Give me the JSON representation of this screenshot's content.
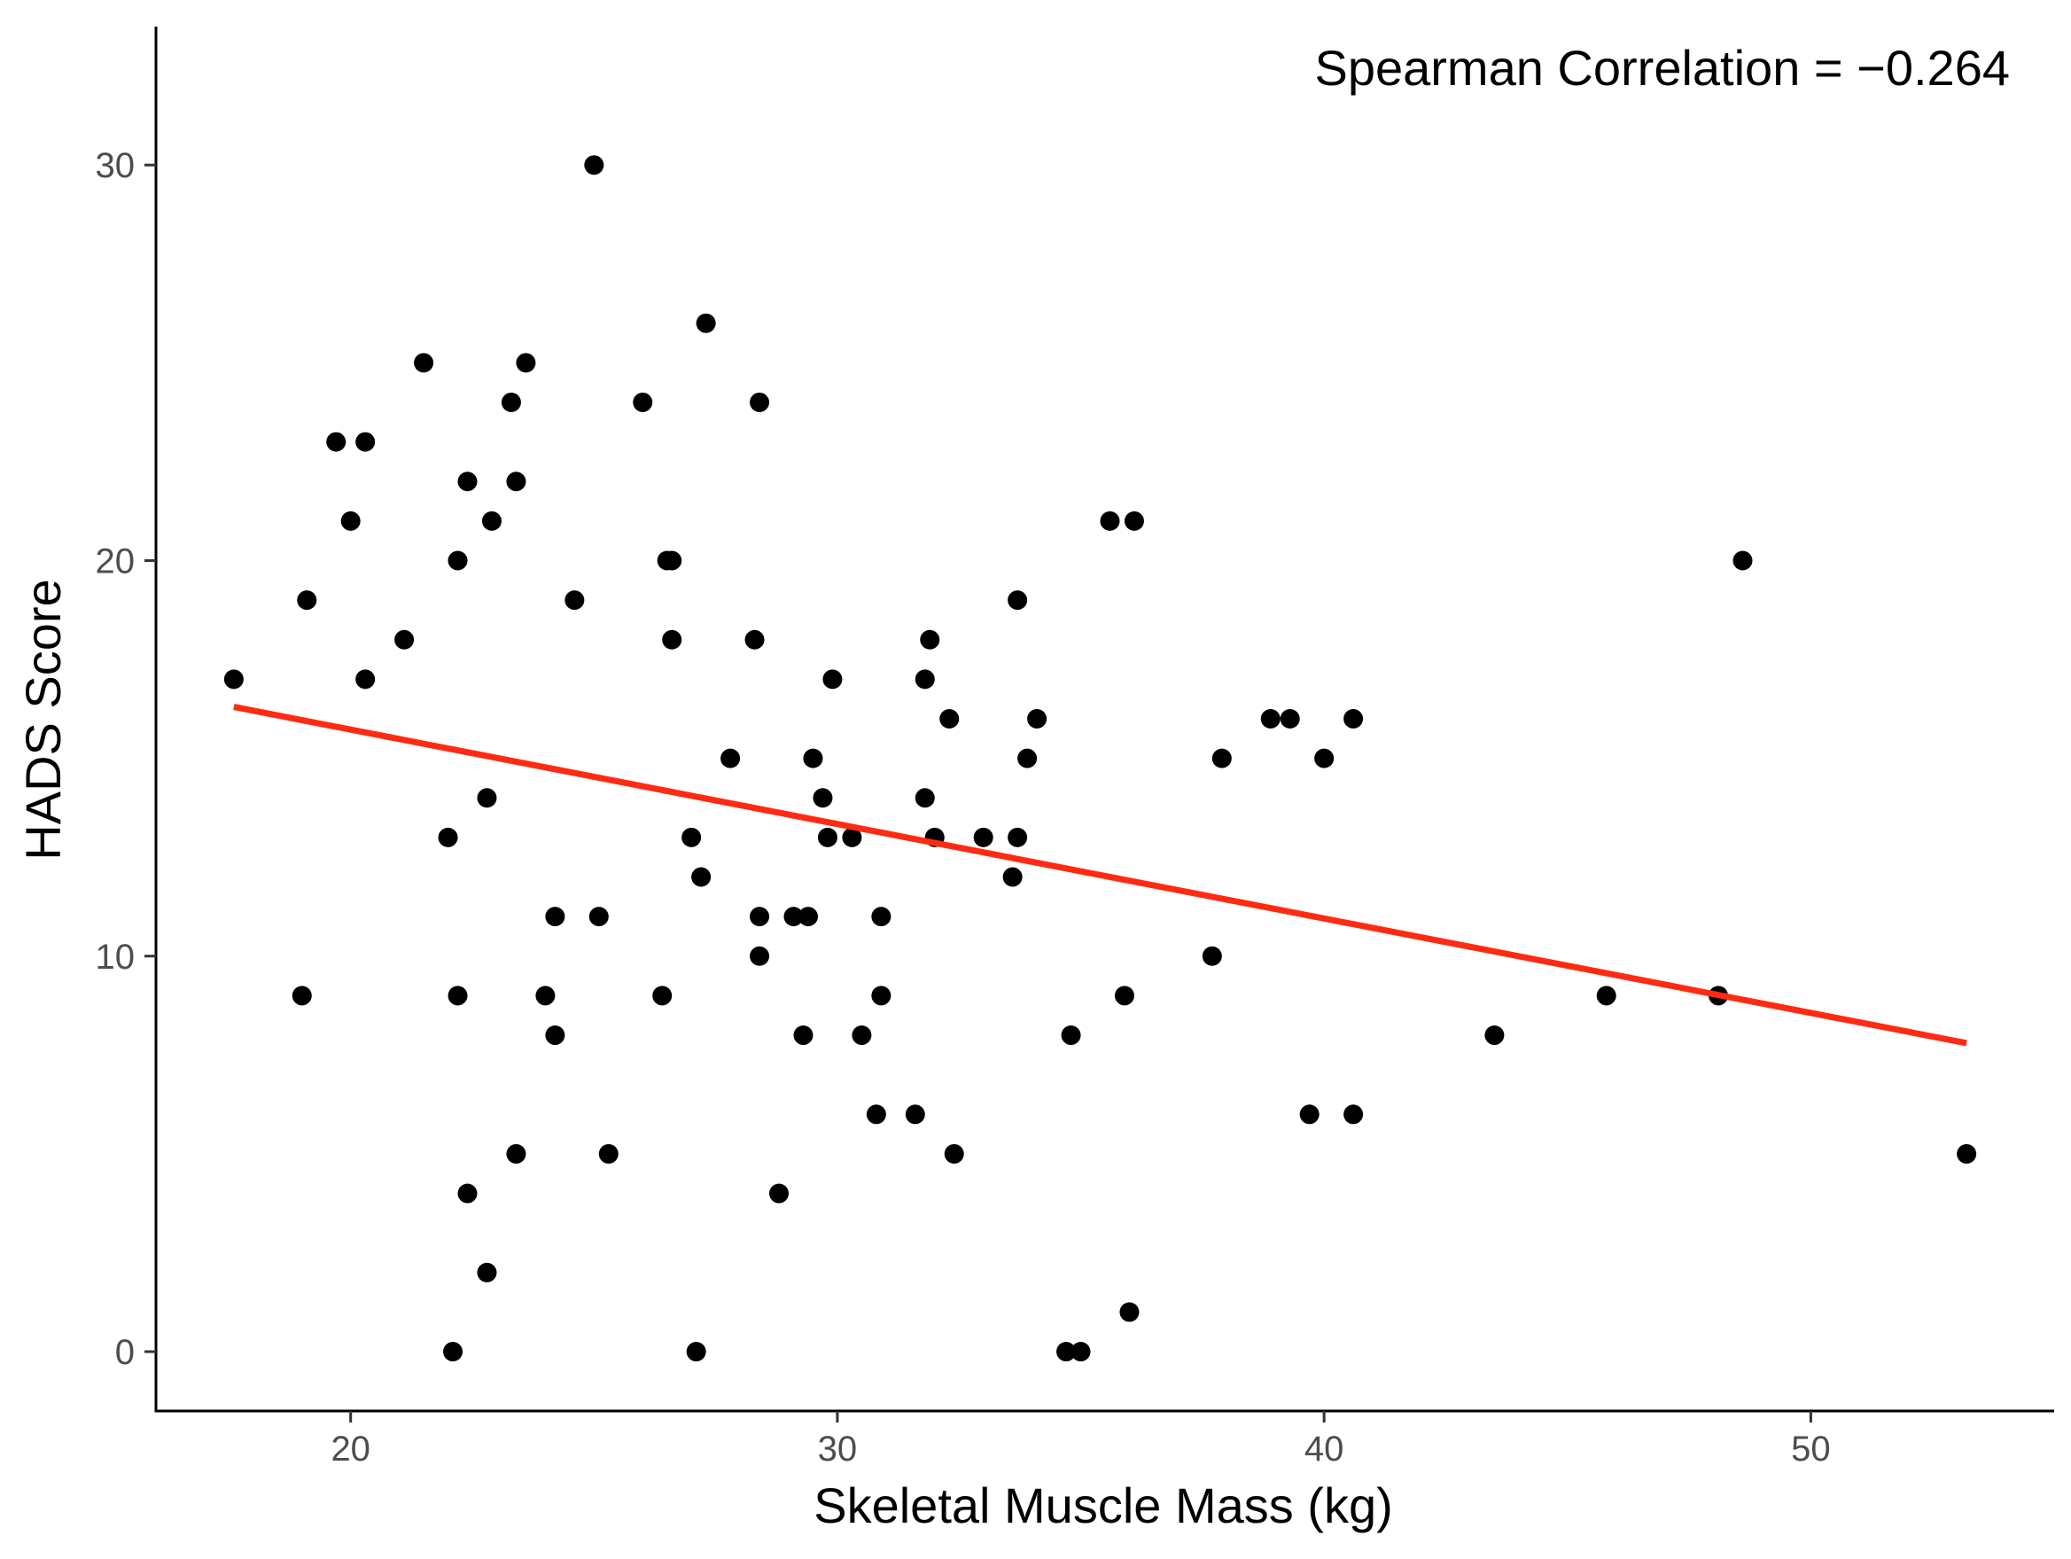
{
  "chart_data": {
    "type": "scatter",
    "title": "",
    "xlabel": "Skeletal Muscle Mass (kg)",
    "ylabel": "HADS Score",
    "xlim": [
      16,
      55
    ],
    "ylim": [
      -1.5,
      33.5
    ],
    "x_ticks": [
      20,
      30,
      40,
      50
    ],
    "y_ticks": [
      0,
      10,
      20,
      30
    ],
    "x_tick_labels": [
      "20",
      "30",
      "40",
      "50"
    ],
    "y_tick_labels": [
      "0",
      "10",
      "20",
      "30"
    ],
    "grid": false,
    "annotation": "Spearman Correlation = −0.264",
    "colors": {
      "points": "#000000",
      "fit_line": "#ff2a12",
      "axis": "#000000",
      "tick_text": "#4d4d4d"
    },
    "series": [
      {
        "name": "observations",
        "points": [
          [
            17.6,
            17
          ],
          [
            19.0,
            9
          ],
          [
            19.1,
            19
          ],
          [
            19.7,
            23
          ],
          [
            20.0,
            21
          ],
          [
            20.3,
            23
          ],
          [
            20.3,
            17
          ],
          [
            21.1,
            18
          ],
          [
            21.5,
            25
          ],
          [
            22.0,
            13
          ],
          [
            22.1,
            0
          ],
          [
            22.2,
            20
          ],
          [
            22.2,
            9
          ],
          [
            22.4,
            22
          ],
          [
            22.4,
            4
          ],
          [
            22.8,
            14
          ],
          [
            22.8,
            2
          ],
          [
            22.9,
            21
          ],
          [
            23.3,
            24
          ],
          [
            23.4,
            22
          ],
          [
            23.4,
            5
          ],
          [
            23.6,
            25
          ],
          [
            24.0,
            9
          ],
          [
            24.2,
            11
          ],
          [
            24.2,
            8
          ],
          [
            24.6,
            19
          ],
          [
            25.0,
            30
          ],
          [
            25.1,
            11
          ],
          [
            25.3,
            5
          ],
          [
            26.0,
            24
          ],
          [
            26.4,
            9
          ],
          [
            26.5,
            20
          ],
          [
            26.6,
            20
          ],
          [
            26.6,
            18
          ],
          [
            27.0,
            13
          ],
          [
            27.1,
            0
          ],
          [
            27.2,
            12
          ],
          [
            27.3,
            26
          ],
          [
            27.8,
            15
          ],
          [
            28.3,
            18
          ],
          [
            28.4,
            24
          ],
          [
            28.4,
            11
          ],
          [
            28.4,
            10
          ],
          [
            28.8,
            4
          ],
          [
            29.1,
            11
          ],
          [
            29.3,
            8
          ],
          [
            29.4,
            11
          ],
          [
            29.5,
            15
          ],
          [
            29.7,
            14
          ],
          [
            29.8,
            13
          ],
          [
            29.9,
            17
          ],
          [
            30.3,
            13
          ],
          [
            30.5,
            8
          ],
          [
            30.8,
            6
          ],
          [
            30.9,
            11
          ],
          [
            30.9,
            9
          ],
          [
            31.6,
            6
          ],
          [
            31.8,
            17
          ],
          [
            31.8,
            14
          ],
          [
            31.9,
            18
          ],
          [
            32.0,
            13
          ],
          [
            32.3,
            16
          ],
          [
            32.4,
            5
          ],
          [
            33.0,
            13
          ],
          [
            33.6,
            12
          ],
          [
            33.7,
            19
          ],
          [
            33.7,
            13
          ],
          [
            33.9,
            15
          ],
          [
            34.1,
            16
          ],
          [
            34.7,
            0
          ],
          [
            34.8,
            8
          ],
          [
            35.0,
            0
          ],
          [
            35.6,
            21
          ],
          [
            35.9,
            9
          ],
          [
            36.0,
            1
          ],
          [
            36.1,
            21
          ],
          [
            37.7,
            10
          ],
          [
            37.9,
            15
          ],
          [
            38.9,
            16
          ],
          [
            39.3,
            16
          ],
          [
            39.7,
            6
          ],
          [
            40.0,
            15
          ],
          [
            40.6,
            16
          ],
          [
            40.6,
            6
          ],
          [
            43.5,
            8
          ],
          [
            45.8,
            9
          ],
          [
            48.1,
            9
          ],
          [
            48.6,
            20
          ],
          [
            53.2,
            5
          ]
        ]
      }
    ],
    "fit_line": {
      "name": "linear fit",
      "x": [
        17.6,
        53.2
      ],
      "y": [
        16.3,
        7.8
      ]
    }
  }
}
